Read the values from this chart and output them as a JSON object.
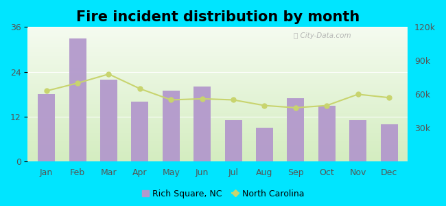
{
  "title": "Fire incident distribution by month",
  "months": [
    "Jan",
    "Feb",
    "Mar",
    "Apr",
    "May",
    "Jun",
    "Jul",
    "Aug",
    "Sep",
    "Oct",
    "Nov",
    "Dec"
  ],
  "bar_values": [
    18,
    33,
    22,
    16,
    19,
    20,
    11,
    9,
    17,
    15,
    11,
    10
  ],
  "line_values": [
    63000,
    70000,
    78000,
    65000,
    55000,
    56000,
    55000,
    50000,
    48000,
    50000,
    60000,
    57000
  ],
  "bar_color": "#b399cc",
  "line_color": "#c8d46e",
  "background_outer": "#00e5ff",
  "left_ylim": [
    0,
    36
  ],
  "left_yticks": [
    0,
    12,
    24,
    36
  ],
  "right_ylim": [
    0,
    120000
  ],
  "right_yticks": [
    30000,
    60000,
    90000,
    120000
  ],
  "right_yticklabels": [
    "30k",
    "60k",
    "90k",
    "120k"
  ],
  "legend_bar_label": "Rich Square, NC",
  "legend_line_label": "North Carolina",
  "title_fontsize": 15,
  "axis_fontsize": 9,
  "watermark": "City-Data.com"
}
